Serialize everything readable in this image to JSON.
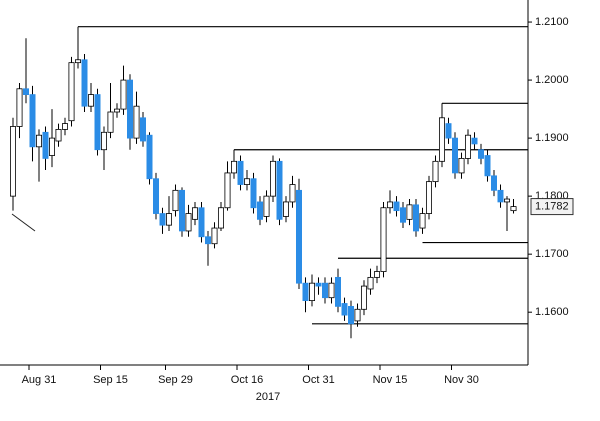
{
  "chart_data": {
    "type": "candlestick",
    "x_label": "2017",
    "categories": [
      null,
      null,
      null,
      null,
      "Aug 31",
      null,
      null,
      null,
      null,
      null,
      null,
      null,
      null,
      null,
      null,
      "Sep 15",
      null,
      null,
      null,
      null,
      null,
      null,
      null,
      null,
      null,
      "Sep 29",
      null,
      null,
      null,
      null,
      null,
      null,
      null,
      null,
      null,
      null,
      "Oct 16",
      null,
      null,
      null,
      null,
      null,
      null,
      null,
      null,
      null,
      null,
      "Oct 31",
      null,
      null,
      null,
      null,
      null,
      null,
      null,
      null,
      null,
      null,
      "Nov 15",
      null,
      null,
      null,
      null,
      null,
      null,
      null,
      null,
      null,
      null,
      "Nov 30",
      null,
      null,
      null,
      null,
      null,
      null,
      null,
      null
    ],
    "open": [
      1.18,
      1.192,
      1.1985,
      1.1975,
      1.1885,
      1.191,
      1.187,
      1.1895,
      1.1915,
      1.193,
      1.203,
      1.2035,
      1.1955,
      1.1975,
      1.188,
      1.191,
      1.1945,
      1.195,
      1.2,
      1.19,
      1.1935,
      1.1905,
      1.183,
      1.177,
      1.175,
      1.1775,
      1.181,
      1.174,
      1.176,
      1.178,
      1.173,
      1.1718,
      1.1745,
      1.178,
      1.184,
      1.186,
      1.182,
      1.183,
      1.179,
      1.1765,
      1.18,
      1.186,
      1.1765,
      1.179,
      1.181,
      1.165,
      1.162,
      1.165,
      1.165,
      1.1625,
      1.166,
      1.1615,
      1.161,
      1.1585,
      1.1605,
      1.164,
      1.166,
      1.167,
      1.178,
      1.179,
      1.178,
      1.176,
      1.1785,
      1.1745,
      1.177,
      1.1825,
      1.186,
      1.1925,
      1.19,
      1.184,
      1.1865,
      1.19,
      1.188,
      1.187,
      1.1835,
      1.181,
      1.179,
      1.1775
    ],
    "high": [
      1.1935,
      1.1995,
      1.2072,
      1.199,
      1.1915,
      1.192,
      1.195,
      1.1925,
      1.1935,
      1.204,
      1.2092,
      1.2045,
      1.1995,
      1.1985,
      1.192,
      1.1995,
      1.196,
      1.2025,
      1.201,
      1.198,
      1.1945,
      1.191,
      1.184,
      1.178,
      1.18,
      1.182,
      1.1815,
      1.1785,
      1.179,
      1.179,
      1.174,
      1.1755,
      1.179,
      1.186,
      1.188,
      1.187,
      1.1845,
      1.184,
      1.18,
      1.181,
      1.187,
      1.1865,
      1.18,
      1.1835,
      1.183,
      1.166,
      1.1665,
      1.166,
      1.166,
      1.166,
      1.1675,
      1.1625,
      1.162,
      1.1615,
      1.1655,
      1.1675,
      1.168,
      1.179,
      1.181,
      1.18,
      1.179,
      1.1795,
      1.1795,
      1.178,
      1.1835,
      1.187,
      1.196,
      1.1935,
      1.191,
      1.1875,
      1.1915,
      1.191,
      1.189,
      1.188,
      1.1845,
      1.182,
      1.18,
      1.1795
    ],
    "low": [
      1.1775,
      1.19,
      1.196,
      1.186,
      1.1825,
      1.1845,
      1.185,
      1.1885,
      1.1905,
      1.192,
      1.202,
      1.1945,
      1.1945,
      1.187,
      1.1845,
      1.19,
      1.1935,
      1.194,
      1.188,
      1.189,
      1.1885,
      1.182,
      1.176,
      1.1735,
      1.174,
      1.1765,
      1.173,
      1.173,
      1.175,
      1.172,
      1.168,
      1.171,
      1.174,
      1.1775,
      1.183,
      1.181,
      1.181,
      1.177,
      1.175,
      1.1755,
      1.179,
      1.175,
      1.1755,
      1.178,
      1.164,
      1.16,
      1.161,
      1.163,
      1.1615,
      1.1615,
      1.16,
      1.1585,
      1.1555,
      1.1575,
      1.1595,
      1.163,
      1.165,
      1.166,
      1.177,
      1.1765,
      1.1745,
      1.175,
      1.173,
      1.1735,
      1.176,
      1.1815,
      1.185,
      1.189,
      1.183,
      1.183,
      1.1855,
      1.188,
      1.1855,
      1.1825,
      1.18,
      1.178,
      1.174,
      1.177
    ],
    "close": [
      1.192,
      1.1985,
      1.1975,
      1.1885,
      1.1905,
      1.1865,
      1.19,
      1.1915,
      1.1925,
      1.203,
      1.2035,
      1.1955,
      1.1975,
      1.188,
      1.191,
      1.1945,
      1.195,
      1.2,
      1.19,
      1.1955,
      1.1895,
      1.183,
      1.177,
      1.175,
      1.177,
      1.181,
      1.174,
      1.177,
      1.178,
      1.173,
      1.1718,
      1.1745,
      1.178,
      1.184,
      1.186,
      1.182,
      1.183,
      1.178,
      1.176,
      1.18,
      1.186,
      1.176,
      1.179,
      1.182,
      1.165,
      1.162,
      1.165,
      1.1645,
      1.1625,
      1.165,
      1.161,
      1.1595,
      1.158,
      1.1605,
      1.1645,
      1.166,
      1.167,
      1.178,
      1.179,
      1.1775,
      1.1755,
      1.1785,
      1.174,
      1.177,
      1.1825,
      1.186,
      1.1935,
      1.19,
      1.184,
      1.1865,
      1.1905,
      1.189,
      1.1865,
      1.1835,
      1.181,
      1.179,
      1.1795,
      1.1782
    ],
    "up_color": "#ffffff",
    "down_color": "#2b8ce6",
    "levels": [
      {
        "value": 1.2092,
        "from": 10
      },
      {
        "value": 1.196,
        "from": 66
      },
      {
        "value": 1.188,
        "from": 34
      },
      {
        "value": 1.172,
        "from": 63
      },
      {
        "value": 1.1693,
        "from": 50
      },
      {
        "value": 1.158,
        "from": 46
      }
    ],
    "last_price": 1.1782,
    "ylim": [
      1.1509,
      1.2138
    ],
    "yticks": [
      {
        "value": 1.16,
        "label": "1.1600"
      },
      {
        "value": 1.17,
        "label": "1.1700"
      },
      {
        "value": 1.18,
        "label": "1.1800"
      },
      {
        "value": 1.19,
        "label": "1.1900"
      },
      {
        "value": 1.2,
        "label": "1.2000"
      },
      {
        "value": 1.21,
        "label": "1.2100"
      }
    ],
    "axis_side": "right"
  }
}
